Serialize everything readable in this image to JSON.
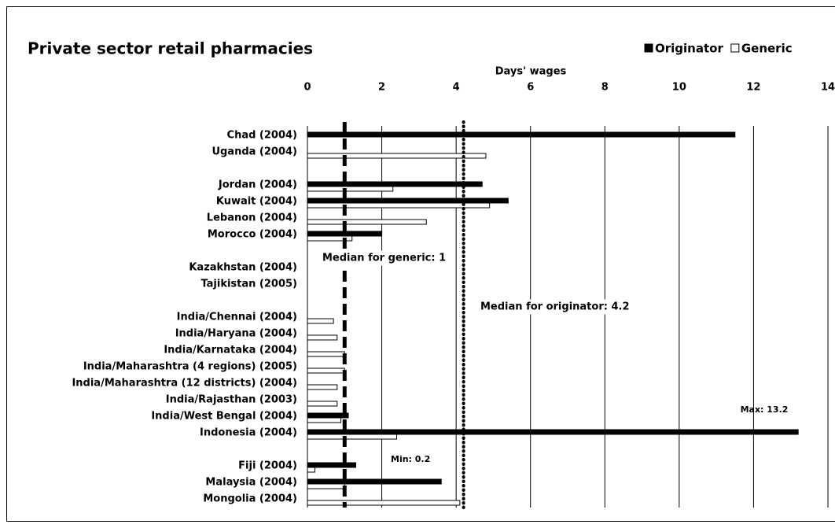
{
  "chart_data": {
    "type": "bar",
    "orientation": "horizontal",
    "title": "Private sector retail pharmacies",
    "x_label": "Days' wages",
    "categories": [
      "Chad (2004)",
      "Uganda (2004)",
      null,
      "Jordan (2004)",
      "Kuwait (2004)",
      "Lebanon (2004)",
      "Morocco (2004)",
      null,
      "Kazakhstan (2004)",
      "Tajikistan (2005)",
      null,
      "India/Chennai (2004)",
      "India/Haryana (2004)",
      "India/Karnataka (2004)",
      "India/Maharashtra (4 regions) (2005)",
      "India/Maharashtra (12 districts) (2004)",
      "India/Rajasthan (2003)",
      "India/West Bengal (2004)",
      "Indonesia (2004)",
      null,
      "Fiji (2004)",
      "Malaysia (2004)",
      "Mongolia (2004)"
    ],
    "series": [
      {
        "name": "Originator",
        "color": "#000000",
        "values": [
          11.5,
          null,
          null,
          4.7,
          5.4,
          null,
          2.0,
          null,
          null,
          null,
          null,
          null,
          null,
          null,
          null,
          null,
          null,
          1.1,
          13.2,
          null,
          1.3,
          3.6,
          null
        ]
      },
      {
        "name": "Generic",
        "color": "#ffffff",
        "values": [
          null,
          4.8,
          null,
          2.3,
          4.9,
          3.2,
          1.2,
          null,
          null,
          null,
          null,
          0.7,
          0.8,
          1.0,
          1.0,
          0.8,
          0.8,
          0.9,
          2.4,
          null,
          0.2,
          1.0,
          4.1
        ]
      }
    ],
    "xlim": [
      0,
      14
    ],
    "xticks": [
      0,
      2,
      4,
      6,
      8,
      10,
      12,
      14
    ],
    "grid": true,
    "legend": "top-right",
    "reference_lines": [
      {
        "value": 1,
        "label": "Median for generic: 1"
      },
      {
        "value": 4.2,
        "label": "Median for originator: 4.2"
      }
    ],
    "annotations": [
      "Max: 13.2",
      "Min: 0.2"
    ]
  }
}
